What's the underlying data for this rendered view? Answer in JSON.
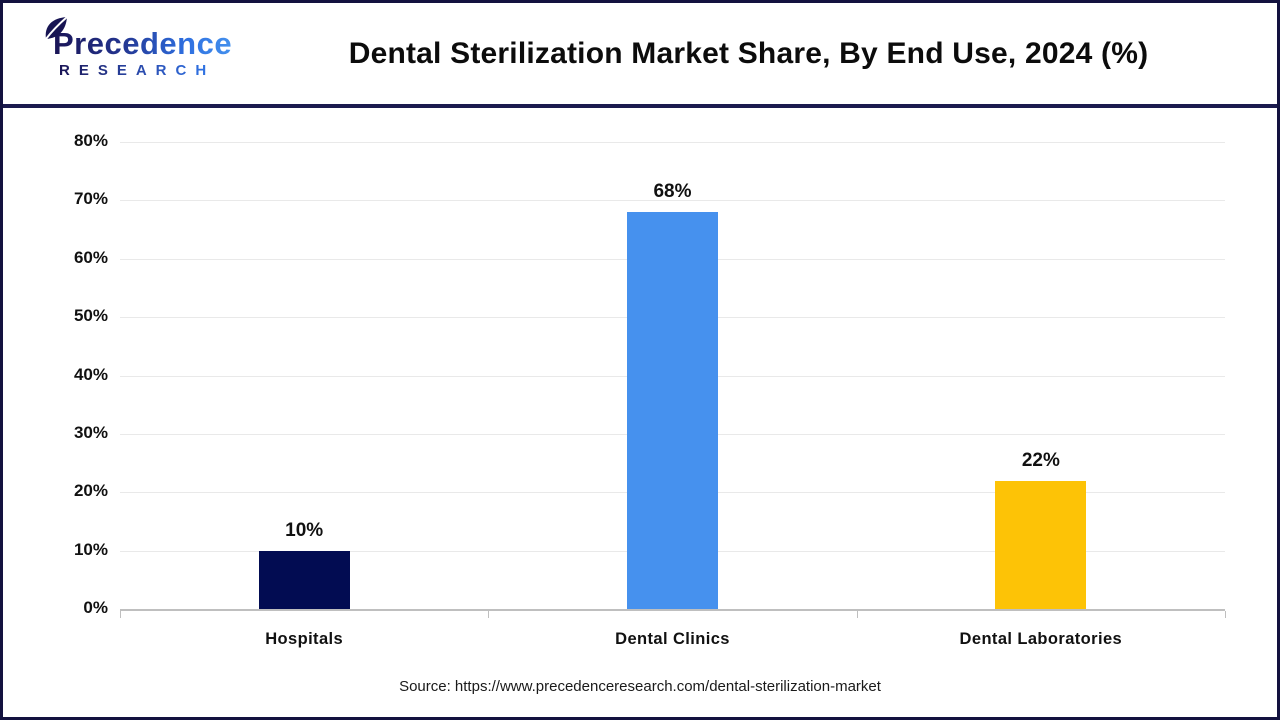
{
  "header": {
    "logo": {
      "line1": "Precedence",
      "line2": "RESEARCH"
    },
    "title": "Dental Sterilization Market Share, By End Use, 2024 (%)"
  },
  "chart_data": {
    "type": "bar",
    "title": "Dental Sterilization Market Share, By End Use, 2024 (%)",
    "categories": [
      "Hospitals",
      "Dental Clinics",
      "Dental Laboratories"
    ],
    "values": [
      10,
      68,
      22
    ],
    "value_labels": [
      "10%",
      "68%",
      "22%"
    ],
    "bar_colors": [
      "#020c52",
      "#4691ee",
      "#fdc306"
    ],
    "xlabel": "",
    "ylabel": "",
    "ylim": [
      0,
      80
    ],
    "ytick_values": [
      0,
      10,
      20,
      30,
      40,
      50,
      60,
      70,
      80
    ],
    "ytick_labels": [
      "0%",
      "10%",
      "20%",
      "30%",
      "40%",
      "50%",
      "60%",
      "70%",
      "80%"
    ],
    "grid": true,
    "legend": false
  },
  "footer": {
    "source": "Source: https://www.precedenceresearch.com/dental-sterilization-market"
  },
  "colors": {
    "border_navy": "#13123f",
    "divider_navy": "#1b1a4e",
    "gridline": "#e9e9e9",
    "axis": "#bfbfbf"
  }
}
